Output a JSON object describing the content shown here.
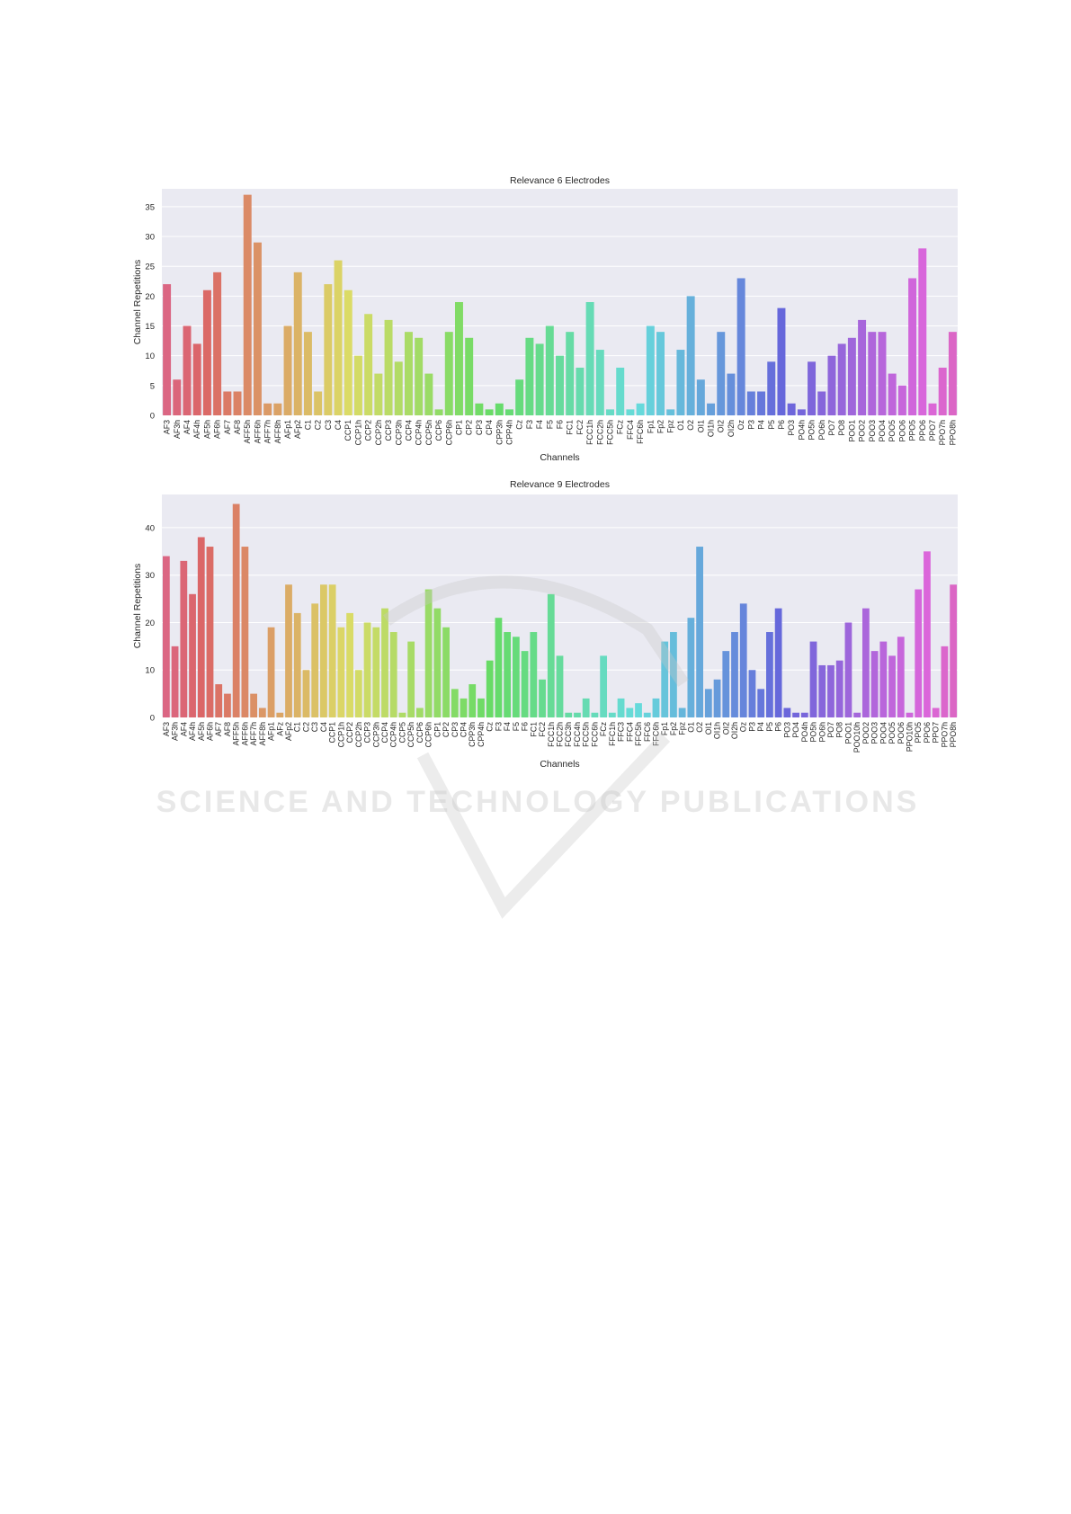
{
  "watermark": "SCIENCE AND TECHNOLOGY PUBLICATIONS",
  "chart_data": [
    {
      "type": "bar",
      "title": "Relevance 6 Electrodes",
      "xlabel": "Channels",
      "ylabel": "Channel Repetitions",
      "ylim": [
        0,
        38
      ],
      "yticks": [
        0,
        5,
        10,
        15,
        20,
        25,
        30,
        35
      ],
      "grid": true,
      "categories": [
        "AF3",
        "AF3h",
        "AF4",
        "AF4h",
        "AF5h",
        "AF6h",
        "AF7",
        "AF8",
        "AFF5h",
        "AFF6h",
        "AFF7h",
        "AFF8h",
        "AFp1",
        "AFp2",
        "C1",
        "C2",
        "C3",
        "C4",
        "CCP1",
        "CCP1h",
        "CCP2",
        "CCP2h",
        "CCP3",
        "CCP3h",
        "CCP4",
        "CCP4h",
        "CCP5h",
        "CCP6",
        "CCP6h",
        "CP1",
        "CP2",
        "CP3",
        "CP4",
        "CPP3h",
        "CPP4h",
        "Cz",
        "F3",
        "F4",
        "F5",
        "F6",
        "FC1",
        "FC2",
        "FCC1h",
        "FCC2h",
        "FCC5h",
        "FCz",
        "FFC4",
        "FFC6h",
        "Fp1",
        "Fp2",
        "Fpz",
        "O1",
        "O2",
        "OI1",
        "OI1h",
        "OI2",
        "OI2h",
        "Oz",
        "P3",
        "P4",
        "P5",
        "P6",
        "PO3",
        "PO4h",
        "PO5h",
        "PO6h",
        "PO7",
        "PO8",
        "POO1",
        "POO2",
        "POO3",
        "POO4",
        "POO5",
        "POO6",
        "PPO5",
        "PPO6",
        "PPO7",
        "PPO7h",
        "PPO8h"
      ],
      "values": [
        22,
        6,
        15,
        12,
        21,
        24,
        4,
        4,
        37,
        29,
        2,
        2,
        15,
        24,
        14,
        4,
        22,
        26,
        21,
        10,
        17,
        7,
        16,
        9,
        14,
        13,
        7,
        1,
        14,
        19,
        13,
        2,
        1,
        2,
        1,
        6,
        13,
        12,
        15,
        10,
        14,
        8,
        19,
        11,
        1,
        8,
        1,
        2,
        15,
        14,
        1,
        11,
        20,
        6,
        2,
        14,
        7,
        23,
        4,
        4,
        9,
        18,
        2,
        1,
        9,
        4,
        10,
        12,
        13,
        16,
        14,
        14,
        7,
        5,
        23,
        28,
        2,
        8,
        14
      ]
    },
    {
      "type": "bar",
      "title": "Relevance 9 Electrodes",
      "xlabel": "Channels",
      "ylabel": "Channel Repetitions",
      "ylim": [
        0,
        47
      ],
      "yticks": [
        0,
        10,
        20,
        30,
        40
      ],
      "grid": true,
      "categories": [
        "AF3",
        "AF3h",
        "AF4",
        "AF4h",
        "AF5h",
        "AF6h",
        "AF7",
        "AF8",
        "AFF5h",
        "AFF6h",
        "AFF7h",
        "AFF8h",
        "AFp1",
        "AFz",
        "AFp2",
        "C1",
        "C2",
        "C3",
        "C4",
        "CCP1",
        "CCP1h",
        "CCP2",
        "CCP2h",
        "CCP3",
        "CCP3h",
        "CCP4",
        "CCP4h",
        "CCP5",
        "CCP5h",
        "CCP6",
        "CCP6h",
        "CP1",
        "CP2",
        "CP3",
        "CP4",
        "CPP3h",
        "CPP4h",
        "Cz",
        "F3",
        "F4",
        "F5",
        "F6",
        "FC1",
        "FC2",
        "FCC1h",
        "FCC2h",
        "FCC3h",
        "FCC4h",
        "FCC5h",
        "FCC6h",
        "FCz",
        "FFC1h",
        "FFC3",
        "FFC4",
        "FFC5h",
        "FFC6",
        "FFC6h",
        "Fp1",
        "Fp2",
        "Fpz",
        "O1",
        "O2",
        "OI1",
        "OI1h",
        "OI2",
        "OI2h",
        "Oz",
        "P3",
        "P4",
        "P5",
        "P6",
        "PO3",
        "PO4",
        "PO4h",
        "PO5h",
        "PO6h",
        "PO7",
        "PO8",
        "POO1",
        "POO10h",
        "POO2",
        "POO3",
        "POO4",
        "POO5",
        "POO6",
        "PPO10h",
        "PPO5",
        "PPO6",
        "PPO7",
        "PPO7h",
        "PPO8h"
      ],
      "values": [
        34,
        15,
        33,
        26,
        38,
        36,
        7,
        5,
        45,
        36,
        5,
        2,
        19,
        1,
        28,
        22,
        10,
        24,
        28,
        28,
        19,
        22,
        10,
        20,
        19,
        23,
        18,
        1,
        16,
        2,
        27,
        23,
        19,
        6,
        4,
        7,
        4,
        12,
        21,
        18,
        17,
        14,
        18,
        8,
        26,
        13,
        1,
        1,
        4,
        1,
        13,
        1,
        4,
        2,
        3,
        1,
        4,
        16,
        18,
        2,
        21,
        36,
        6,
        8,
        14,
        18,
        24,
        10,
        6,
        18,
        23,
        2,
        1,
        1,
        16,
        11,
        11,
        12,
        20,
        1,
        23,
        14,
        16,
        13,
        17,
        1,
        27,
        35,
        2,
        15,
        28
      ]
    }
  ]
}
